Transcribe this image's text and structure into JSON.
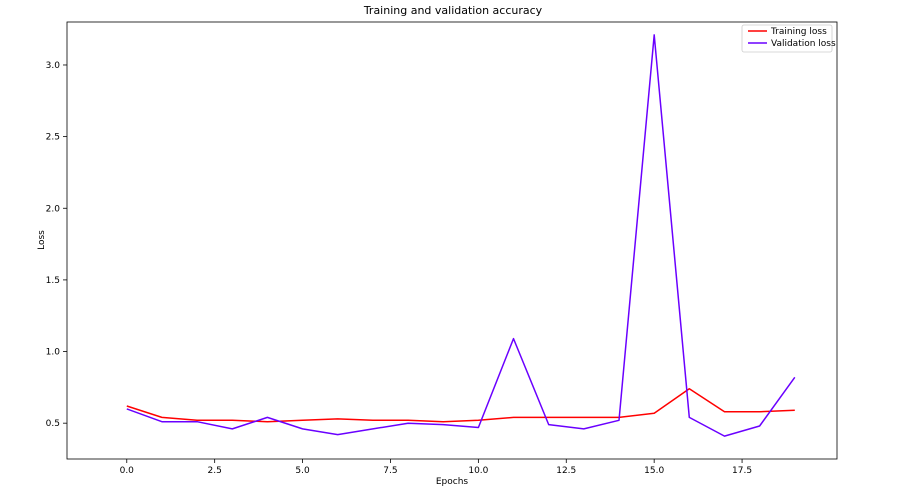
{
  "chart_data": {
    "type": "line",
    "title": "Training and validation accuracy",
    "xlabel": "Epochs",
    "ylabel": "Loss",
    "xlim": [
      -1.7,
      20.2
    ],
    "ylim": [
      0.25,
      3.3
    ],
    "x_ticks": [
      0.0,
      2.5,
      5.0,
      7.5,
      10.0,
      12.5,
      15.0,
      17.5
    ],
    "x_tick_labels": [
      "0.0",
      "2.5",
      "5.0",
      "7.5",
      "10.0",
      "12.5",
      "15.0",
      "17.5"
    ],
    "y_ticks": [
      0.5,
      1.0,
      1.5,
      2.0,
      2.5,
      3.0
    ],
    "y_tick_labels": [
      "0.5",
      "1.0",
      "1.5",
      "2.0",
      "2.5",
      "3.0"
    ],
    "x": [
      0,
      1,
      2,
      3,
      4,
      5,
      6,
      7,
      8,
      9,
      10,
      11,
      12,
      13,
      14,
      15,
      16,
      17,
      18,
      19
    ],
    "series": [
      {
        "name": "Training loss",
        "color": "#ff0000",
        "values": [
          0.62,
          0.54,
          0.52,
          0.52,
          0.51,
          0.52,
          0.53,
          0.52,
          0.52,
          0.51,
          0.52,
          0.54,
          0.54,
          0.54,
          0.54,
          0.57,
          0.74,
          0.58,
          0.58,
          0.59
        ]
      },
      {
        "name": "Validation loss",
        "color": "#6a00ff",
        "values": [
          0.6,
          0.51,
          0.51,
          0.46,
          0.54,
          0.46,
          0.42,
          0.46,
          0.5,
          0.49,
          0.47,
          1.09,
          0.49,
          0.46,
          0.52,
          3.21,
          0.54,
          0.41,
          0.48,
          0.82
        ]
      }
    ],
    "legend": {
      "location": "top-right"
    },
    "grid": false
  }
}
